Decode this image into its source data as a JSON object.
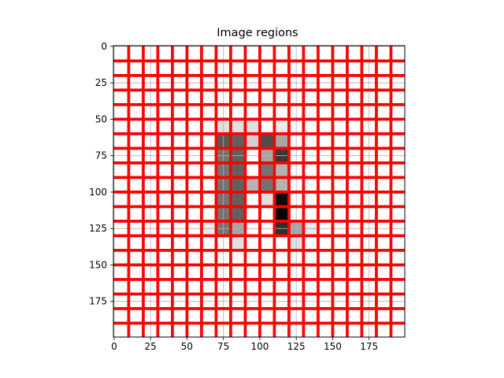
{
  "chart_data": {
    "type": "heatmap",
    "title": "Image regions",
    "xlabel": "",
    "ylabel": "",
    "x_ticks": [
      0,
      25,
      50,
      75,
      100,
      125,
      150,
      175
    ],
    "y_ticks": [
      0,
      25,
      50,
      75,
      100,
      125,
      150,
      175
    ],
    "xlim": [
      -0.5,
      199.5
    ],
    "ylim": [
      199.5,
      -0.5
    ],
    "y_inverted": true,
    "grid": true,
    "colormap": "gray_r",
    "cell_size": 10,
    "region_color": "#ff0000",
    "grid_color": "#b0b0b0",
    "cells": [
      {
        "x": 70,
        "y": 50,
        "v": 0.12
      },
      {
        "x": 80,
        "y": 50,
        "v": 0.12
      },
      {
        "x": 90,
        "y": 50,
        "v": 0.12
      },
      {
        "x": 110,
        "y": 50,
        "v": 0.08
      },
      {
        "x": 70,
        "y": 60,
        "v": 0.65
      },
      {
        "x": 80,
        "y": 60,
        "v": 0.62
      },
      {
        "x": 90,
        "y": 60,
        "v": 0.18
      },
      {
        "x": 100,
        "y": 60,
        "v": 0.7
      },
      {
        "x": 110,
        "y": 60,
        "v": 0.35
      },
      {
        "x": 70,
        "y": 70,
        "v": 0.55
      },
      {
        "x": 80,
        "y": 70,
        "v": 0.62
      },
      {
        "x": 100,
        "y": 70,
        "v": 0.35
      },
      {
        "x": 110,
        "y": 70,
        "v": 0.78
      },
      {
        "x": 70,
        "y": 80,
        "v": 0.55
      },
      {
        "x": 80,
        "y": 80,
        "v": 0.62
      },
      {
        "x": 100,
        "y": 80,
        "v": 0.55
      },
      {
        "x": 110,
        "y": 80,
        "v": 0.3
      },
      {
        "x": 70,
        "y": 90,
        "v": 0.55
      },
      {
        "x": 80,
        "y": 90,
        "v": 0.62
      },
      {
        "x": 90,
        "y": 90,
        "v": 0.3
      },
      {
        "x": 100,
        "y": 90,
        "v": 0.55
      },
      {
        "x": 110,
        "y": 90,
        "v": 0.3
      },
      {
        "x": 70,
        "y": 100,
        "v": 0.55
      },
      {
        "x": 80,
        "y": 100,
        "v": 0.62
      },
      {
        "x": 100,
        "y": 100,
        "v": 0.12
      },
      {
        "x": 110,
        "y": 100,
        "v": 0.96
      },
      {
        "x": 70,
        "y": 110,
        "v": 0.55
      },
      {
        "x": 80,
        "y": 110,
        "v": 0.62
      },
      {
        "x": 110,
        "y": 110,
        "v": 0.98
      },
      {
        "x": 60,
        "y": 120,
        "v": 0.08
      },
      {
        "x": 70,
        "y": 120,
        "v": 0.55
      },
      {
        "x": 80,
        "y": 120,
        "v": 0.35
      },
      {
        "x": 110,
        "y": 120,
        "v": 0.82
      },
      {
        "x": 120,
        "y": 120,
        "v": 0.35
      },
      {
        "x": 130,
        "y": 120,
        "v": 0.08
      },
      {
        "x": 80,
        "y": 130,
        "v": 0.12
      },
      {
        "x": 120,
        "y": 130,
        "v": 0.12
      }
    ]
  }
}
